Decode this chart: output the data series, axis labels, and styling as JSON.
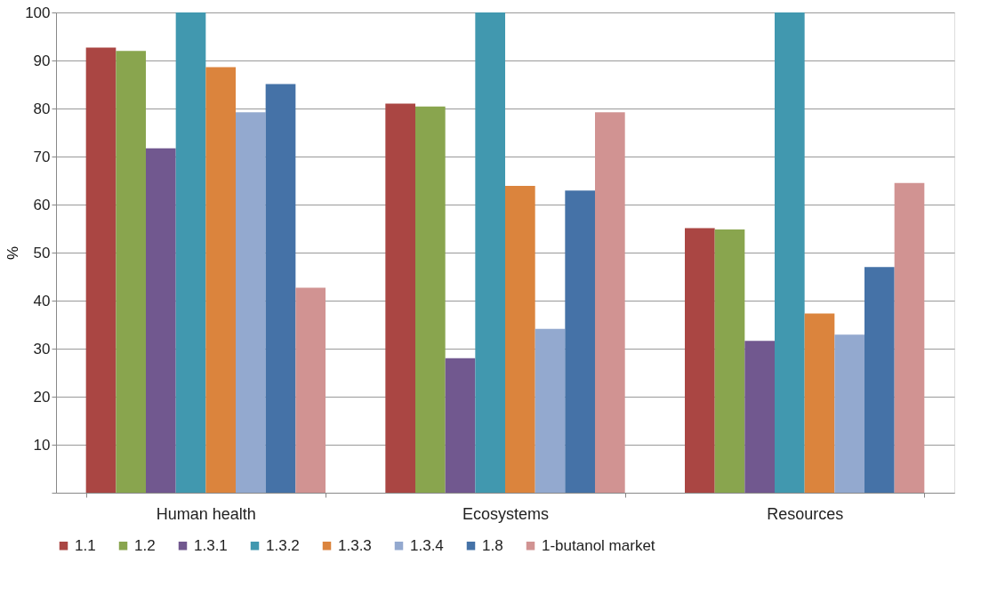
{
  "chart_data": {
    "type": "bar",
    "ylabel": "%",
    "categories": [
      "Human health",
      "Ecosystems",
      "Resources"
    ],
    "series": [
      {
        "name": "1.1",
        "color": "#aa4643",
        "values": [
          92.7,
          81.0,
          55.1
        ]
      },
      {
        "name": "1.2",
        "color": "#89a54e",
        "values": [
          92.0,
          80.4,
          54.8
        ]
      },
      {
        "name": "1.3.1",
        "color": "#71588f",
        "values": [
          71.7,
          28.0,
          31.6
        ]
      },
      {
        "name": "1.3.2",
        "color": "#4198af",
        "values": [
          100,
          100,
          100
        ]
      },
      {
        "name": "1.3.3",
        "color": "#db843d",
        "values": [
          88.6,
          63.9,
          37.3
        ]
      },
      {
        "name": "1.3.4",
        "color": "#93a9cf",
        "values": [
          79.2,
          34.1,
          32.9
        ]
      },
      {
        "name": "1.8",
        "color": "#4572a7",
        "values": [
          85.1,
          62.9,
          47.0
        ]
      },
      {
        "name": "1-butanol market",
        "color": "#d19392",
        "values": [
          42.7,
          79.2,
          64.5
        ]
      }
    ],
    "ylim": [
      0,
      100
    ],
    "yticks": [
      {
        "value": 0,
        "label": null
      },
      10,
      20,
      30,
      40,
      50,
      60,
      70,
      80,
      90,
      100
    ],
    "grid": "y",
    "legend": "bottom"
  }
}
